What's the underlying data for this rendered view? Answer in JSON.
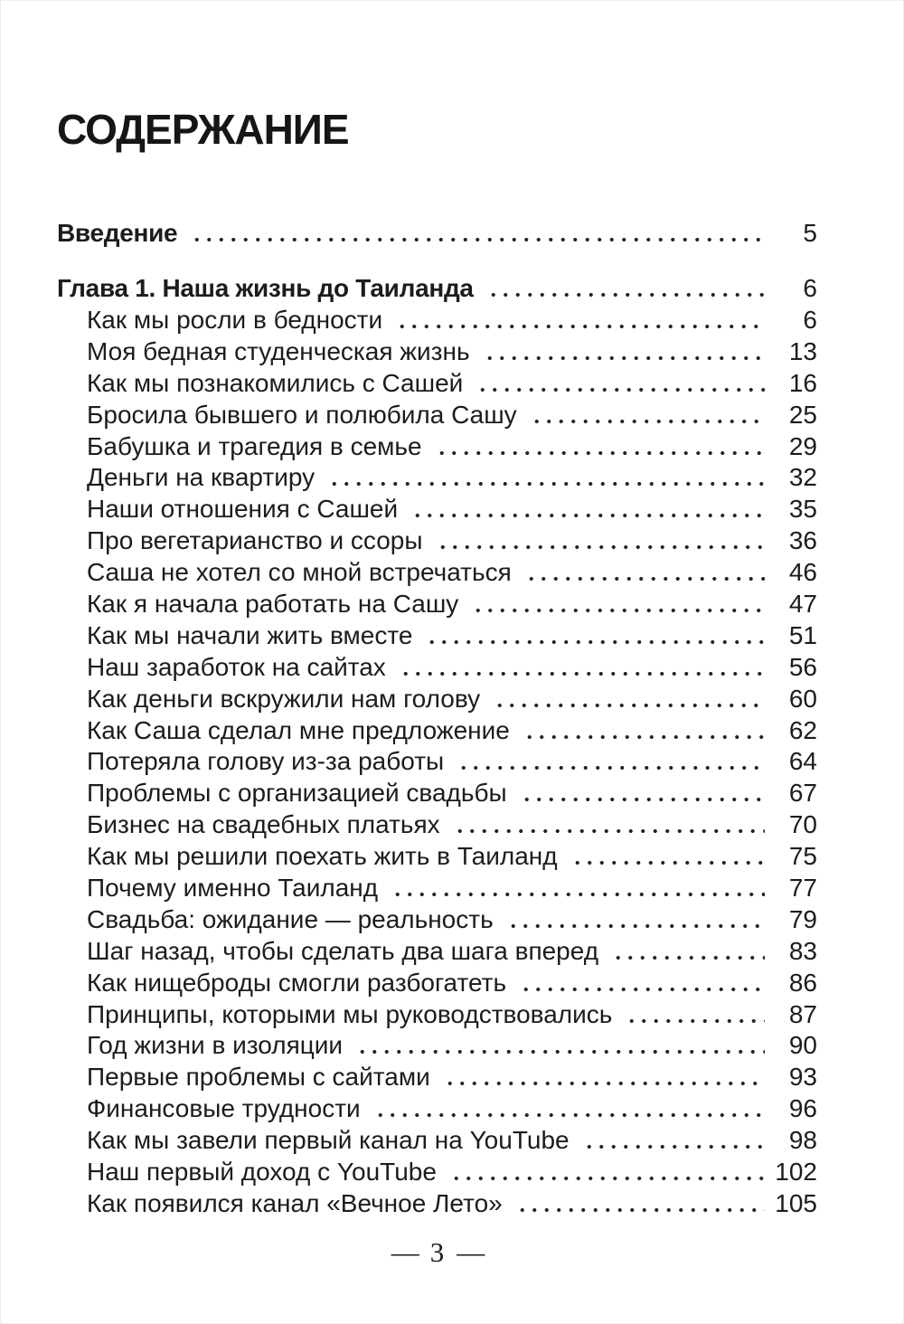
{
  "page": {
    "title": "СОДЕРЖАНИЕ",
    "footer": {
      "left_dash": "—",
      "number": "3",
      "right_dash": "—"
    }
  },
  "toc": {
    "intro": {
      "label": "Введение",
      "page": "5"
    },
    "chapter": {
      "label": "Глава 1. Наша жизнь до Таиланда",
      "page": "6"
    },
    "entries": [
      {
        "label": "Как мы росли в бедности",
        "page": "6"
      },
      {
        "label": "Моя бедная студенческая жизнь",
        "page": "13"
      },
      {
        "label": "Как мы познакомились с Сашей",
        "page": "16"
      },
      {
        "label": "Бросила бывшего и полюбила Сашу",
        "page": "25"
      },
      {
        "label": "Бабушка и трагедия в семье",
        "page": "29"
      },
      {
        "label": "Деньги на квартиру",
        "page": "32"
      },
      {
        "label": "Наши отношения с Сашей",
        "page": "35"
      },
      {
        "label": "Про вегетарианство и ссоры",
        "page": "36"
      },
      {
        "label": "Саша не хотел со мной встречаться",
        "page": "46"
      },
      {
        "label": "Как я начала работать на Сашу",
        "page": "47"
      },
      {
        "label": "Как мы начали жить вместе",
        "page": "51"
      },
      {
        "label": "Наш заработок на сайтах",
        "page": "56"
      },
      {
        "label": "Как деньги вскружили нам голову",
        "page": "60"
      },
      {
        "label": "Как Саша сделал мне предложение",
        "page": "62"
      },
      {
        "label": "Потеряла голову из-за работы",
        "page": "64"
      },
      {
        "label": "Проблемы с организацией свадьбы",
        "page": "67"
      },
      {
        "label": "Бизнес на свадебных платьях",
        "page": "70"
      },
      {
        "label": "Как мы решили поехать жить в Таиланд",
        "page": "75"
      },
      {
        "label": "Почему именно Таиланд",
        "page": "77"
      },
      {
        "label": "Свадьба: ожидание — реальность",
        "page": "79"
      },
      {
        "label": "Шаг назад, чтобы сделать два шага вперед",
        "page": "83"
      },
      {
        "label": "Как нищеброды смогли разбогатеть",
        "page": "86"
      },
      {
        "label": "Принципы, которыми мы руководствовались",
        "page": "87"
      },
      {
        "label": "Год жизни в изоляции",
        "page": "90"
      },
      {
        "label": "Первые проблемы с сайтами",
        "page": "93"
      },
      {
        "label": "Финансовые трудности",
        "page": "96"
      },
      {
        "label": "Как мы завели первый канал на YouTube",
        "page": "98"
      },
      {
        "label": "Наш первый доход с YouTube",
        "page": "102"
      },
      {
        "label": "Как появился канал «Вечное Лето»",
        "page": "105"
      }
    ]
  }
}
